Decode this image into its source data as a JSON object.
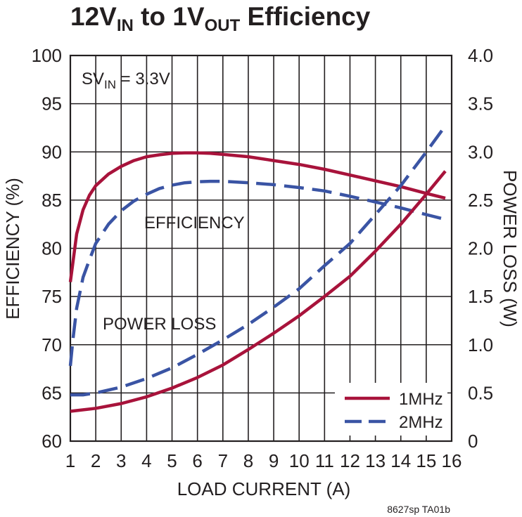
{
  "chart_data": {
    "type": "line",
    "title": {
      "parts": [
        {
          "text": "12V",
          "sub": false
        },
        {
          "text": "IN",
          "sub": true
        },
        {
          "text": " to 1V",
          "sub": false
        },
        {
          "text": "OUT",
          "sub": true
        },
        {
          "text": " Efficiency",
          "sub": false
        }
      ]
    },
    "xlabel": "LOAD CURRENT (A)",
    "ylabel_left": "EFFICIENCY (%)",
    "ylabel_right": "POWER LOSS (W)",
    "xlim": [
      1,
      16
    ],
    "ylim_left": [
      60,
      100
    ],
    "ylim_right": [
      0,
      4.0
    ],
    "x_ticks": [
      "1",
      "2",
      "3",
      "4",
      "5",
      "6",
      "7",
      "8",
      "9",
      "10",
      "11",
      "12",
      "13",
      "14",
      "15",
      "16"
    ],
    "y_ticks_left": [
      "60",
      "65",
      "70",
      "75",
      "80",
      "85",
      "90",
      "95",
      "100"
    ],
    "y_ticks_right": [
      "0",
      "0.5",
      "1.0",
      "1.5",
      "2.0",
      "2.5",
      "3.0",
      "3.5",
      "4.0"
    ],
    "grid": true,
    "condition": {
      "prefix": "SV",
      "sub": "IN",
      "suffix": " = 3.3V"
    },
    "annotations": [
      "EFFICIENCY",
      "POWER LOSS"
    ],
    "legend_position": "bottom-right",
    "series": [
      {
        "name": "1MHz",
        "kind": "efficiency",
        "axis": "left",
        "color": "#a8133b",
        "dash": "solid",
        "x": [
          1.0,
          1.1,
          1.25,
          1.5,
          1.75,
          2.0,
          2.5,
          3.0,
          3.5,
          4.0,
          4.5,
          5.0,
          5.5,
          6.0,
          6.5,
          7.0,
          8.0,
          9.0,
          10.0,
          11.0,
          12.0,
          13.0,
          14.0,
          15.0,
          15.75
        ],
        "y": [
          76.5,
          78.5,
          81.5,
          84.0,
          85.5,
          86.5,
          87.7,
          88.5,
          89.1,
          89.5,
          89.7,
          89.85,
          89.9,
          89.9,
          89.85,
          89.75,
          89.5,
          89.1,
          88.7,
          88.2,
          87.6,
          87.0,
          86.4,
          85.7,
          85.2
        ]
      },
      {
        "name": "2MHz",
        "kind": "efficiency",
        "axis": "left",
        "color": "#3a54a4",
        "dash": "dashed",
        "x": [
          1.0,
          1.1,
          1.25,
          1.5,
          1.75,
          2.0,
          2.5,
          3.0,
          3.5,
          4.0,
          4.5,
          5.0,
          5.5,
          6.0,
          6.5,
          7.0,
          8.0,
          9.0,
          10.0,
          11.0,
          12.0,
          13.0,
          14.0,
          15.0,
          15.75
        ],
        "y": [
          67.8,
          70.5,
          73.8,
          77.0,
          78.8,
          80.5,
          82.5,
          83.9,
          84.9,
          85.6,
          86.2,
          86.55,
          86.8,
          86.9,
          86.95,
          86.95,
          86.8,
          86.6,
          86.3,
          85.95,
          85.4,
          84.8,
          84.2,
          83.5,
          83.0
        ]
      },
      {
        "name": "1MHz",
        "kind": "power_loss",
        "axis": "right",
        "color": "#a8133b",
        "dash": "solid",
        "x": [
          1.0,
          2.0,
          3.0,
          4.0,
          5.0,
          6.0,
          7.0,
          8.0,
          9.0,
          10.0,
          11.0,
          12.0,
          13.0,
          14.0,
          15.0,
          15.75
        ],
        "y": [
          0.31,
          0.34,
          0.39,
          0.46,
          0.55,
          0.66,
          0.79,
          0.95,
          1.12,
          1.3,
          1.5,
          1.71,
          1.97,
          2.25,
          2.56,
          2.8
        ]
      },
      {
        "name": "2MHz",
        "kind": "power_loss",
        "axis": "right",
        "color": "#3a54a4",
        "dash": "dashed",
        "x": [
          1.0,
          1.5,
          2.0,
          3.0,
          4.0,
          5.0,
          6.0,
          7.0,
          8.0,
          9.0,
          10.0,
          11.0,
          12.0,
          13.0,
          14.0,
          15.0,
          15.75
        ],
        "y": [
          0.48,
          0.48,
          0.5,
          0.56,
          0.65,
          0.76,
          0.9,
          1.05,
          1.21,
          1.39,
          1.58,
          1.82,
          2.05,
          2.35,
          2.65,
          3.0,
          3.27
        ]
      }
    ],
    "footnote": "8627sp TA01b"
  }
}
